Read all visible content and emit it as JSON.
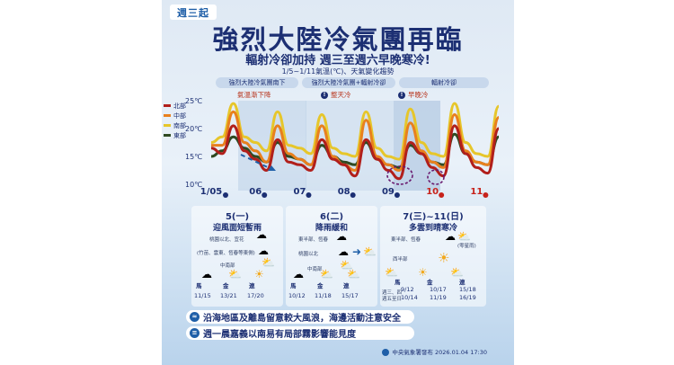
{
  "badge": "週三起",
  "title": "強烈大陸冷氣團再臨",
  "subtitle": "輻射冷卻加持 週三至週六早晚寒冷!",
  "chart_caption": "1/5~1/11氣溫(℃)、天氣變化趨勢",
  "phases": [
    {
      "label": "強烈大陸冷氣團南下",
      "note": "氣溫漸下降"
    },
    {
      "label": "強烈大陸冷氣團+輻射冷卻",
      "note": "整天冷"
    },
    {
      "label": "輻射冷卻",
      "note": "早晚冷"
    }
  ],
  "colors": {
    "north": "#b11f1b",
    "central": "#e8801e",
    "south": "#e6c62b",
    "east": "#2f4a22",
    "accent": "#1f5fa8",
    "title": "#1c2f73"
  },
  "chart_data": {
    "type": "line",
    "ylabel": "",
    "ylim": [
      10,
      25
    ],
    "yticks": [
      "25℃",
      "20℃",
      "15℃",
      "10℃"
    ],
    "x_labels": [
      "1/05",
      "06",
      "07",
      "08",
      "09",
      "10",
      "11"
    ],
    "x_weekend_labels": [
      "10",
      "11"
    ],
    "x": [
      5.0,
      5.25,
      5.5,
      5.75,
      6.0,
      6.25,
      6.5,
      6.75,
      7.0,
      7.25,
      7.5,
      7.75,
      8.0,
      8.25,
      8.5,
      8.75,
      9.0,
      9.25,
      9.5,
      9.75,
      10.0,
      10.25,
      10.5,
      10.75,
      11.0,
      11.25,
      11.5
    ],
    "series": [
      {
        "name": "北部",
        "color": "#b11f1b",
        "values": [
          16.5,
          15.5,
          20.5,
          16.0,
          14.5,
          12.5,
          18.0,
          14.0,
          13.5,
          12.5,
          18.0,
          14.5,
          13.5,
          11.5,
          18.0,
          14.5,
          12.5,
          11.0,
          17.5,
          15.5,
          13.0,
          11.5,
          20.5,
          15.5,
          13.0,
          12.0,
          20.0
        ]
      },
      {
        "name": "中部",
        "color": "#e8801e",
        "values": [
          17.0,
          17.0,
          23.0,
          17.5,
          16.0,
          14.0,
          20.5,
          15.5,
          14.5,
          13.5,
          20.5,
          15.0,
          13.5,
          12.5,
          21.5,
          15.0,
          13.5,
          12.5,
          21.0,
          16.0,
          14.0,
          13.0,
          22.5,
          16.0,
          14.0,
          13.5,
          22.0
        ]
      },
      {
        "name": "南部",
        "color": "#e6c62b",
        "values": [
          17.5,
          18.5,
          24.5,
          18.5,
          17.5,
          16.0,
          23.0,
          17.0,
          16.5,
          15.5,
          22.5,
          16.5,
          15.5,
          15.0,
          23.0,
          16.5,
          15.0,
          14.5,
          23.5,
          17.5,
          15.5,
          15.0,
          24.5,
          17.5,
          15.5,
          15.0,
          24.0
        ]
      },
      {
        "name": "東部",
        "color": "#2f4a22",
        "values": [
          15.0,
          16.0,
          18.5,
          16.5,
          15.0,
          14.0,
          17.5,
          15.0,
          14.5,
          13.5,
          17.0,
          15.0,
          14.0,
          13.5,
          17.5,
          14.5,
          13.5,
          13.0,
          17.0,
          15.5,
          14.0,
          13.5,
          19.0,
          15.5,
          14.0,
          13.5,
          18.5
        ]
      }
    ],
    "legend_position": "left",
    "grid": false
  },
  "panels": [
    {
      "date": "5(一)",
      "headline": "迎風面短暫雨",
      "descs": [
        "桃園以北、宜花",
        "(竹苗、雲東、恆春等東側)",
        "中南部"
      ],
      "cities": [
        "馬",
        "金",
        "連"
      ],
      "temps": [
        "11/15",
        "13/21",
        "17/20"
      ]
    },
    {
      "date": "6(二)",
      "headline": "降雨緩和",
      "descs": [
        "東半部、恆春",
        "桃園以北",
        "中南部"
      ],
      "cities": [
        "馬",
        "金",
        "連"
      ],
      "temps": [
        "10/12",
        "11/18",
        "15/17"
      ]
    },
    {
      "date": "7(三)~11(日)",
      "headline": "多雲到晴寒冷",
      "descs": [
        "東半部、恆春",
        "(零星雨)",
        "西半部",
        "週三、四",
        "週五至日"
      ],
      "cities": [
        "馬",
        "金",
        "連"
      ],
      "temps": [
        "9/12",
        "10/14",
        "10/17",
        "11/19",
        "15/18",
        "16/19"
      ]
    }
  ],
  "notices": [
    "沿海地區及離島留意較大風浪，海邊活動注意安全",
    "週一晨嘉義以南易有局部霧影響能見度"
  ],
  "footer": "中央氣象署發布 2026.01.04 17:30"
}
